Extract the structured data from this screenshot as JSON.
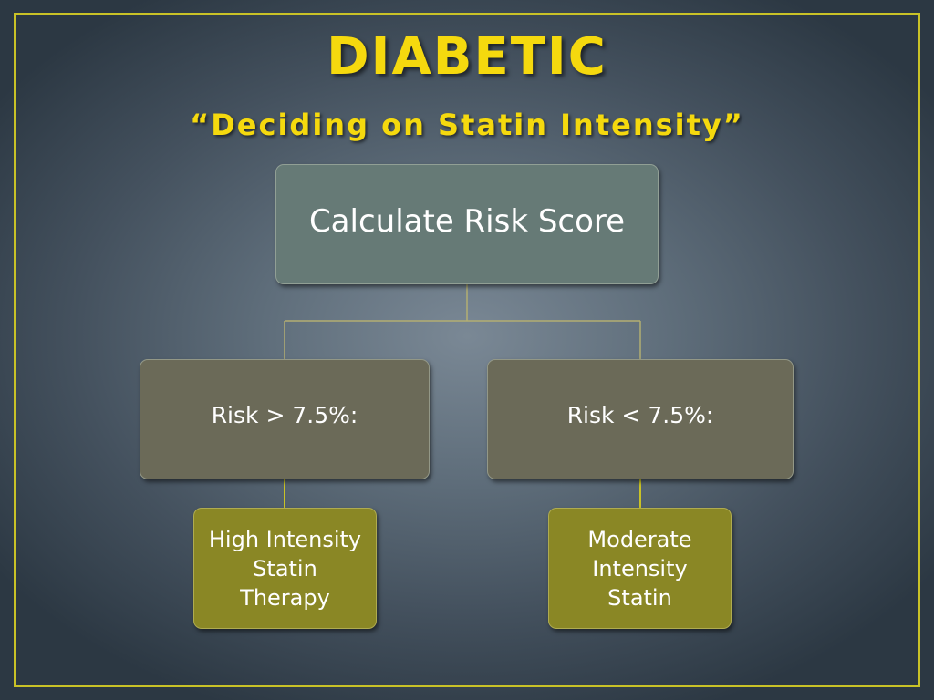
{
  "slide": {
    "title": "DIABETIC",
    "subtitle": "“Deciding on Statin Intensity”"
  },
  "flowchart": {
    "root": {
      "label": "Calculate Risk Score"
    },
    "branches": [
      {
        "label": "Risk > 7.5%:",
        "outcome_lines": [
          "High Intensity",
          "Statin",
          "Therapy"
        ]
      },
      {
        "label": "Risk < 7.5%:",
        "outcome_lines": [
          "Moderate",
          "Intensity",
          "Statin"
        ]
      }
    ]
  },
  "colors": {
    "accent": "#f5d90e",
    "frame": "#c9c227",
    "root_box": "#667a76",
    "branch_box": "#6b6a58",
    "outcome_box": "#8a8725",
    "connector_root": "#b3ae72",
    "connector_outcome": "#c9c227"
  }
}
